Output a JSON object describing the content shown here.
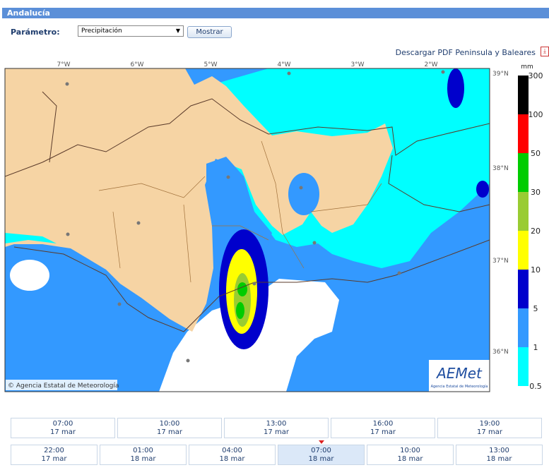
{
  "header": {
    "title": "Andalucía"
  },
  "form": {
    "label": "Parámetro:",
    "select": "Precipitación",
    "button": "Mostrar"
  },
  "download_link": "Descargar PDF Peninsula y Baleares",
  "map": {
    "longitudes": [
      "7°W",
      "6°W",
      "5°W",
      "4°W",
      "3°W",
      "2°W"
    ],
    "latitudes": [
      "39°N",
      "38°N",
      "37°N",
      "36°N"
    ],
    "copyright": "© Agencia Estatal de Meteorología",
    "logo": {
      "name": "AEMet",
      "subtitle": "Agencia Estatal de Meteorología"
    }
  },
  "legend": {
    "unit": "mm",
    "levels": [
      "300",
      "100",
      "50",
      "30",
      "20",
      "10",
      "5",
      "1",
      "0.5"
    ],
    "colors": [
      "#000000",
      "#ff0000",
      "#00cc00",
      "#99cc33",
      "#ffff00",
      "#0000cc",
      "#3399ff",
      "#00ffff"
    ]
  },
  "timeline": {
    "rows": [
      [
        {
          "time": "07:00",
          "date": "17 mar"
        },
        {
          "time": "10:00",
          "date": "17 mar"
        },
        {
          "time": "13:00",
          "date": "17 mar"
        },
        {
          "time": "16:00",
          "date": "17 mar"
        },
        {
          "time": "19:00",
          "date": "17 mar"
        }
      ],
      [
        {
          "time": "22:00",
          "date": "17 mar"
        },
        {
          "time": "01:00",
          "date": "18 mar"
        },
        {
          "time": "04:00",
          "date": "18 mar"
        },
        {
          "time": "07:00",
          "date": "18 mar",
          "selected": true
        },
        {
          "time": "10:00",
          "date": "18 mar"
        },
        {
          "time": "13:00",
          "date": "18 mar"
        }
      ]
    ]
  }
}
